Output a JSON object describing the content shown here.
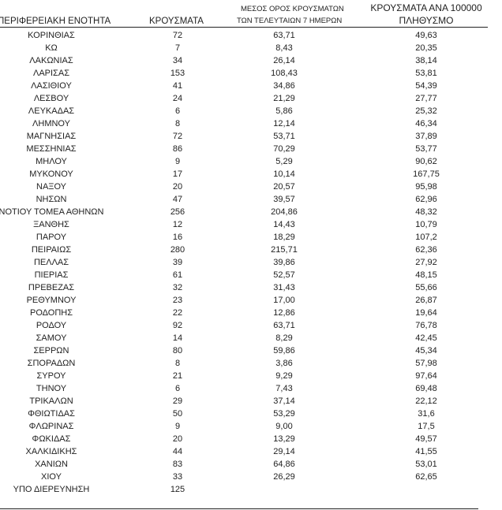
{
  "headers": {
    "region": "ΠΕΡΙΦΕΡΕΙΑΚΗ ΕΝΟΤΗΤΑ",
    "cases": "ΚΡΟΥΣΜΑΤΑ",
    "avg_line1": "ΜΕΣΟΣ ΟΡΟΣ ΚΡΟΥΣΜΑΤΩΝ",
    "avg_line2": "ΤΩΝ ΤΕΛΕΥΤΑΙΩΝ 7 ΗΜΕΡΩΝ",
    "per100k_line1": "ΚΡΟΥΣΜΑΤΑ ΑΝΑ 100000",
    "per100k_line2": "ΠΛΗΘΥΣΜΟ"
  },
  "rows": [
    {
      "region": "ΚΟΡΙΝΘΙΑΣ",
      "cases": "72",
      "avg7": "63,71",
      "per100k": "49,63"
    },
    {
      "region": "ΚΩ",
      "cases": "7",
      "avg7": "8,43",
      "per100k": "20,35"
    },
    {
      "region": "ΛΑΚΩΝΙΑΣ",
      "cases": "34",
      "avg7": "26,14",
      "per100k": "38,14"
    },
    {
      "region": "ΛΑΡΙΣΑΣ",
      "cases": "153",
      "avg7": "108,43",
      "per100k": "53,81"
    },
    {
      "region": "ΛΑΣΙΘΙΟΥ",
      "cases": "41",
      "avg7": "34,86",
      "per100k": "54,39"
    },
    {
      "region": "ΛΕΣΒΟΥ",
      "cases": "24",
      "avg7": "21,29",
      "per100k": "27,77"
    },
    {
      "region": "ΛΕΥΚΑΔΑΣ",
      "cases": "6",
      "avg7": "5,86",
      "per100k": "25,32"
    },
    {
      "region": "ΛΗΜΝΟΥ",
      "cases": "8",
      "avg7": "12,14",
      "per100k": "46,34"
    },
    {
      "region": "ΜΑΓΝΗΣΙΑΣ",
      "cases": "72",
      "avg7": "53,71",
      "per100k": "37,89"
    },
    {
      "region": "ΜΕΣΣΗΝΙΑΣ",
      "cases": "86",
      "avg7": "70,29",
      "per100k": "53,77"
    },
    {
      "region": "ΜΗΛΟΥ",
      "cases": "9",
      "avg7": "5,29",
      "per100k": "90,62"
    },
    {
      "region": "ΜΥΚΟΝΟΥ",
      "cases": "17",
      "avg7": "10,14",
      "per100k": "167,75"
    },
    {
      "region": "ΝΑΞΟΥ",
      "cases": "20",
      "avg7": "20,57",
      "per100k": "95,98"
    },
    {
      "region": "ΝΗΣΩΝ",
      "cases": "47",
      "avg7": "39,57",
      "per100k": "62,96"
    },
    {
      "region": "ΝΟΤΙΟΥ ΤΟΜΕΑ ΑΘΗΝΩΝ",
      "cases": "256",
      "avg7": "204,86",
      "per100k": "48,32"
    },
    {
      "region": "ΞΑΝΘΗΣ",
      "cases": "12",
      "avg7": "14,43",
      "per100k": "10,79"
    },
    {
      "region": "ΠΑΡΟΥ",
      "cases": "16",
      "avg7": "18,29",
      "per100k": "107,2"
    },
    {
      "region": "ΠΕΙΡΑΙΩΣ",
      "cases": "280",
      "avg7": "215,71",
      "per100k": "62,36"
    },
    {
      "region": "ΠΕΛΛΑΣ",
      "cases": "39",
      "avg7": "39,86",
      "per100k": "27,92"
    },
    {
      "region": "ΠΙΕΡΙΑΣ",
      "cases": "61",
      "avg7": "52,57",
      "per100k": "48,15"
    },
    {
      "region": "ΠΡΕΒΕΖΑΣ",
      "cases": "32",
      "avg7": "31,43",
      "per100k": "55,66"
    },
    {
      "region": "ΡΕΘΥΜΝΟΥ",
      "cases": "23",
      "avg7": "17,00",
      "per100k": "26,87"
    },
    {
      "region": "ΡΟΔΟΠΗΣ",
      "cases": "22",
      "avg7": "12,86",
      "per100k": "19,64"
    },
    {
      "region": "ΡΟΔΟΥ",
      "cases": "92",
      "avg7": "63,71",
      "per100k": "76,78"
    },
    {
      "region": "ΣΑΜΟΥ",
      "cases": "14",
      "avg7": "8,29",
      "per100k": "42,45"
    },
    {
      "region": "ΣΕΡΡΩΝ",
      "cases": "80",
      "avg7": "59,86",
      "per100k": "45,34"
    },
    {
      "region": "ΣΠΟΡΑΔΩΝ",
      "cases": "8",
      "avg7": "3,86",
      "per100k": "57,98"
    },
    {
      "region": "ΣΥΡΟΥ",
      "cases": "21",
      "avg7": "9,29",
      "per100k": "97,64"
    },
    {
      "region": "ΤΗΝΟΥ",
      "cases": "6",
      "avg7": "7,43",
      "per100k": "69,48"
    },
    {
      "region": "ΤΡΙΚΑΛΩΝ",
      "cases": "29",
      "avg7": "37,14",
      "per100k": "22,12"
    },
    {
      "region": "ΦΘΙΩΤΙΔΑΣ",
      "cases": "50",
      "avg7": "53,29",
      "per100k": "31,6"
    },
    {
      "region": "ΦΛΩΡΙΝΑΣ",
      "cases": "9",
      "avg7": "9,00",
      "per100k": "17,5"
    },
    {
      "region": "ΦΩΚΙΔΑΣ",
      "cases": "20",
      "avg7": "13,29",
      "per100k": "49,57"
    },
    {
      "region": "ΧΑΛΚΙΔΙΚΗΣ",
      "cases": "44",
      "avg7": "29,14",
      "per100k": "41,55"
    },
    {
      "region": "ΧΑΝΙΩΝ",
      "cases": "83",
      "avg7": "64,86",
      "per100k": "53,01"
    },
    {
      "region": "ΧΙΟΥ",
      "cases": "33",
      "avg7": "26,29",
      "per100k": "62,65"
    },
    {
      "region": "ΥΠΟ ΔΙΕΡΕΥΝΗΣΗ",
      "cases": "125",
      "avg7": "",
      "per100k": ""
    }
  ]
}
